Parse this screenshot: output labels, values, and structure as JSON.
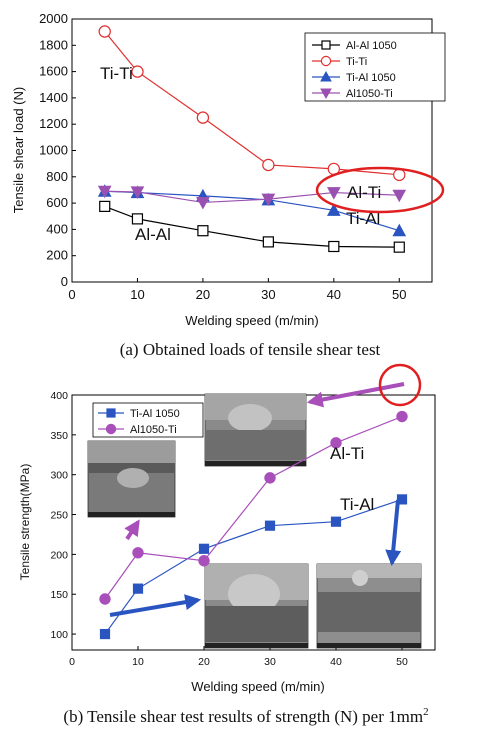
{
  "chart_data": [
    {
      "type": "line",
      "xlabel": "Welding speed (m/min)",
      "ylabel": "Tensile shear load (N)",
      "xlim": [
        0,
        55
      ],
      "ylim": [
        0,
        2000
      ],
      "xticks": [
        "0",
        "10",
        "20",
        "30",
        "40",
        "50"
      ],
      "yticks": [
        "0",
        "200",
        "400",
        "600",
        "800",
        "1000",
        "1200",
        "1400",
        "1600",
        "1800",
        "2000"
      ],
      "grid": false,
      "legend_position": "top-right",
      "x": [
        5,
        10,
        20,
        30,
        40,
        50
      ],
      "series": [
        {
          "name": "Al-Al 1050",
          "color": "#000000",
          "marker": "open-square",
          "values": [
            575,
            480,
            390,
            305,
            270,
            265
          ]
        },
        {
          "name": "Ti-Ti",
          "color": "#e03030",
          "marker": "open-circle",
          "values": [
            1905,
            1600,
            1250,
            890,
            860,
            815
          ]
        },
        {
          "name": "Ti-Al 1050",
          "color": "#2a55c0",
          "marker": "triangle-up",
          "values": [
            690,
            680,
            655,
            625,
            545,
            390
          ]
        },
        {
          "name": "Al1050-Ti",
          "color": "#9a50b0",
          "marker": "triangle-down",
          "values": [
            690,
            685,
            605,
            630,
            680,
            660
          ]
        }
      ],
      "annotations": [
        "Ti-Ti",
        "Al-Al",
        "Al-Ti",
        "Ti-Al"
      ],
      "caption": "(a) Obtained loads of tensile shear test"
    },
    {
      "type": "line",
      "xlabel": "Welding speed (m/min)",
      "ylabel": "Tensile strength(MPa)",
      "xlim": [
        0,
        55
      ],
      "ylim": [
        80,
        400
      ],
      "xticks": [
        "0",
        "10",
        "20",
        "30",
        "40",
        "50"
      ],
      "yticks": [
        "100",
        "150",
        "200",
        "250",
        "300",
        "350",
        "400"
      ],
      "grid": false,
      "legend_position": "top-left",
      "x": [
        5,
        10,
        20,
        30,
        40,
        50
      ],
      "series": [
        {
          "name": "Ti-Al 1050",
          "color": "#2a55c0",
          "marker": "filled-square",
          "values": [
            100,
            157,
            207,
            236,
            241,
            269
          ]
        },
        {
          "name": "Al1050-Ti",
          "color": "#a94fba",
          "marker": "filled-circle",
          "values": [
            144,
            202,
            192,
            296,
            340,
            373
          ]
        }
      ],
      "annotations": [
        "Al-Ti",
        "Ti-Al"
      ],
      "caption": "(b) Tensile shear test results of strength (N) per 1mm",
      "caption_sup": "2"
    }
  ]
}
